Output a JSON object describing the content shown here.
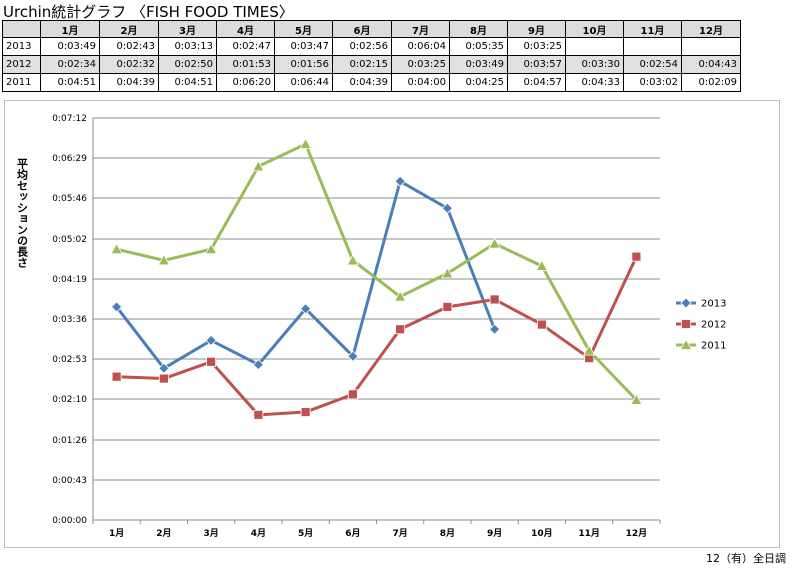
{
  "page": {
    "title": "Urchin統計グラフ 〈FISH FOOD TIMES〉",
    "footer": "12（有）全日調"
  },
  "table": {
    "headers": [
      "1月",
      "2月",
      "3月",
      "4月",
      "5月",
      "6月",
      "7月",
      "8月",
      "9月",
      "10月",
      "11月",
      "12月"
    ],
    "rows": [
      {
        "year": "2013",
        "values": [
          "0:03:49",
          "0:02:43",
          "0:03:13",
          "0:02:47",
          "0:03:47",
          "0:02:56",
          "0:06:04",
          "0:05:35",
          "0:03:25",
          "",
          "",
          ""
        ]
      },
      {
        "year": "2012",
        "values": [
          "0:02:34",
          "0:02:32",
          "0:02:50",
          "0:01:53",
          "0:01:56",
          "0:02:15",
          "0:03:25",
          "0:03:49",
          "0:03:57",
          "0:03:30",
          "0:02:54",
          "0:04:43"
        ]
      },
      {
        "year": "2011",
        "values": [
          "0:04:51",
          "0:04:39",
          "0:04:51",
          "0:06:20",
          "0:06:44",
          "0:04:39",
          "0:04:00",
          "0:04:25",
          "0:04:57",
          "0:04:33",
          "0:03:02",
          "0:02:09"
        ]
      }
    ]
  },
  "chart_data": {
    "type": "line",
    "title": "",
    "xlabel": "",
    "ylabel": "平均セッションの長さ",
    "categories": [
      "1月",
      "2月",
      "3月",
      "4月",
      "5月",
      "6月",
      "7月",
      "8月",
      "9月",
      "10月",
      "11月",
      "12月"
    ],
    "y_ticks": [
      "0:00:00",
      "0:00:43",
      "0:01:26",
      "0:02:10",
      "0:02:53",
      "0:03:36",
      "0:04:19",
      "0:05:02",
      "0:05:46",
      "0:06:29",
      "0:07:12"
    ],
    "ylim_seconds": [
      0,
      432
    ],
    "grid": true,
    "legend_position": "right",
    "series": [
      {
        "name": "2013",
        "color": "#4a7ebb",
        "marker": "diamond",
        "values": [
          "0:03:49",
          "0:02:43",
          "0:03:13",
          "0:02:47",
          "0:03:47",
          "0:02:56",
          "0:06:04",
          "0:05:35",
          "0:03:25",
          null,
          null,
          null
        ]
      },
      {
        "name": "2012",
        "color": "#c0504d",
        "marker": "square",
        "values": [
          "0:02:34",
          "0:02:32",
          "0:02:50",
          "0:01:53",
          "0:01:56",
          "0:02:15",
          "0:03:25",
          "0:03:49",
          "0:03:57",
          "0:03:30",
          "0:02:54",
          "0:04:43"
        ]
      },
      {
        "name": "2011",
        "color": "#9bbb59",
        "marker": "triangle",
        "values": [
          "0:04:51",
          "0:04:39",
          "0:04:51",
          "0:06:20",
          "0:06:44",
          "0:04:39",
          "0:04:00",
          "0:04:25",
          "0:04:57",
          "0:04:33",
          "0:03:02",
          "0:02:09"
        ]
      }
    ]
  }
}
